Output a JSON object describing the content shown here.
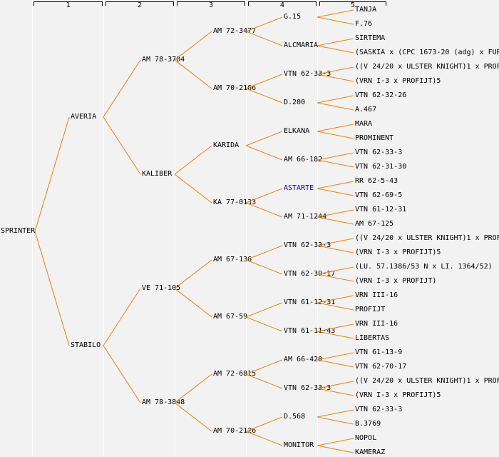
{
  "colors": {
    "background": "#f2f2f2",
    "grid_line": "#ffffff",
    "edge": "#e8820f",
    "text": "#000000",
    "highlight_text": "#0000cc",
    "header_text": "#000000"
  },
  "header": {
    "column_labels": [
      "1",
      "2",
      "3",
      "4",
      "5"
    ]
  },
  "tree": {
    "generations": [
      [
        "SPRINTER"
      ],
      [
        "AVERIA",
        "STABILO"
      ],
      [
        "AM 78-3704",
        "KALIBER",
        "VE 71-105",
        "AM 78-3848"
      ],
      [
        "AM 72-3477",
        "AM 70-2166",
        "KARIDA",
        "KA 77-0133",
        "AM 67-136",
        "AM 67-59",
        "AM 72-6815",
        "AM 70-2126"
      ],
      [
        "G.15",
        "ALCMARIA",
        "VTN 62-33-3",
        "D.200",
        "ELKANA",
        "AM 66-182",
        "ASTARTE",
        "AM 71-1244",
        "VTN 62-33-3",
        "VTN 62-39-17",
        "VTN 61-12-31",
        "VTN 61-11-43",
        "AM 66-420",
        "VTN 62-33-3",
        "D.568",
        "MONITOR"
      ],
      [
        "TANJA",
        "F.76",
        "SIRTEMA",
        "(SASKIA x (CPC 1673-20 (adg) x FUR",
        "((V 24/20 x ULSTER KNIGHT)1 x PROF",
        "(VRN I-3 x PROFIJT)5",
        "VTN 62-32-26",
        "A.467",
        "MARA",
        "PROMINENT",
        "VTN 62-33-3",
        "VTN 62-31-30",
        "RR 62-5-43",
        "VTN 62-69-5",
        "VTN 61-12-31",
        "AM 67-125",
        "((V 24/20 x ULSTER KNIGHT)1 x PROF",
        "(VRN I-3 x PROFIJT)5",
        "(LU. 57.1386/53 N x LI. 1364/52)",
        "(VRN I-3 x PROFIJT)",
        "VRN III-16",
        "PROFIJT",
        "VRN III-16",
        "LIBERTAS",
        "VTN 61-13-9",
        "VTN 62-70-17",
        "((V 24/20 x ULSTER KNIGHT)1 x PROF",
        "(VRN I-3 x PROFIJT)5",
        "VTN 62-33-3",
        "B.3769",
        "NOPOL",
        "KAMERAZ"
      ]
    ],
    "highlight": {
      "generation": 4,
      "index": 6,
      "label": "ASTARTE"
    }
  }
}
